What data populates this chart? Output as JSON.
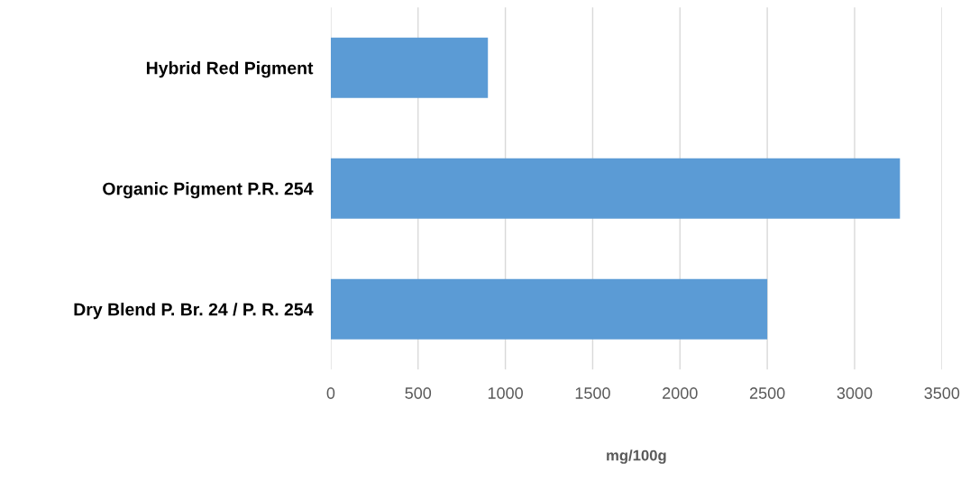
{
  "chart_data": {
    "type": "bar",
    "orientation": "horizontal",
    "xlabel": "mg/100g",
    "categories": [
      "Hybrid Red Pigment",
      "Organic Pigment P.R. 254",
      "Dry Blend P. Br. 24 / P. R. 254"
    ],
    "values": [
      900,
      3260,
      2500
    ],
    "color": "#5b9bd5",
    "xlim": [
      0,
      3500
    ],
    "xticks": [
      0,
      500,
      1000,
      1500,
      2000,
      2500,
      3000,
      3500
    ],
    "grid": "x"
  }
}
